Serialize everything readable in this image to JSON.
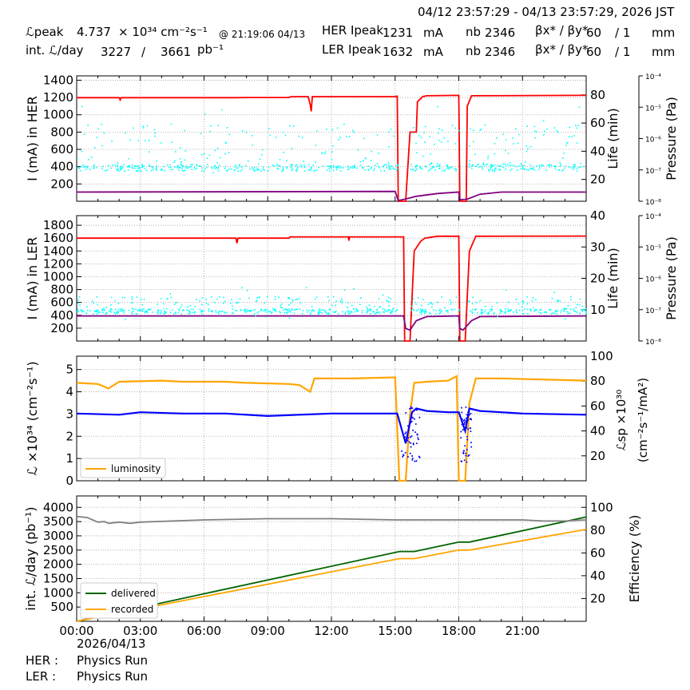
{
  "header": {
    "date_range": "04/12 23:57:29 - 04/13 23:57:29, 2026 JST",
    "lpeak_label": "ℒpeak",
    "lpeak_value": "4.737",
    "lpeak_unit": "× 10³⁴ cm⁻²s⁻¹",
    "lpeak_time": "@ 21:19:06 04/13",
    "intl_label": "int. ℒ/day",
    "intl_recorded": "3227",
    "intl_sep": "/",
    "intl_delivered": "3661",
    "intl_unit": "pb⁻¹",
    "her_label": "HER Ipeak",
    "her_value": "1231",
    "ler_label": "LER Ipeak",
    "ler_value": "1632",
    "current_unit": "mA",
    "nb_label": "nb",
    "her_nb": "2346",
    "ler_nb": "2346",
    "beta_label": "βx* / βy*",
    "her_beta_x": "60",
    "her_beta_y": "/ 1",
    "ler_beta_x": "60",
    "ler_beta_y": "/ 1",
    "beta_unit": "mm"
  },
  "footer": {
    "date": "2026/04/13",
    "her_label": "HER :",
    "her_status": "Physics Run",
    "ler_label": "LER :",
    "ler_status": "Physics Run"
  },
  "colors": {
    "red": "#ff0000",
    "cyan": "#00ffff",
    "purple": "#800080",
    "orange": "#ffa500",
    "blue": "#0000ff",
    "green": "#006400",
    "gray": "#808080",
    "grid": "#a0a0a0"
  },
  "chart_data": [
    {
      "type": "line",
      "ylabel": "I (mA) in HER",
      "y2label": "Life (min)",
      "y3label": "Pressure (Pa)",
      "ylim": [
        0,
        1450
      ],
      "yticks": [
        200,
        400,
        600,
        800,
        1000,
        1200,
        1400
      ],
      "y2lim": [
        4.5,
        93.5
      ],
      "y2ticks": [
        20,
        40,
        60,
        80
      ],
      "y3ticks": [
        "10⁻⁴",
        "10⁻⁵",
        "10⁻⁶",
        "10⁻⁷",
        "10⁻⁸"
      ],
      "xlim": [
        0,
        24
      ],
      "series": [
        {
          "key": "current",
          "color": "red",
          "points": [
            [
              0,
              1198
            ],
            [
              2.0,
              1198
            ],
            [
              2.05,
              1172
            ],
            [
              2.1,
              1198
            ],
            [
              7.5,
              1198
            ],
            [
              8.0,
              1200
            ],
            [
              10.0,
              1200
            ],
            [
              10.1,
              1210
            ],
            [
              10.9,
              1210
            ],
            [
              11.0,
              1120
            ],
            [
              11.05,
              1040
            ],
            [
              11.1,
              1210
            ],
            [
              15.0,
              1210
            ],
            [
              15.1,
              1215
            ],
            [
              15.15,
              0
            ],
            [
              15.5,
              0
            ],
            [
              15.7,
              800
            ],
            [
              16.0,
              800
            ],
            [
              16.05,
              1150
            ],
            [
              16.3,
              1210
            ],
            [
              16.5,
              1220
            ],
            [
              18.0,
              1225
            ],
            [
              18.05,
              0
            ],
            [
              18.35,
              0
            ],
            [
              18.4,
              1100
            ],
            [
              18.6,
              1220
            ],
            [
              24,
              1225
            ]
          ]
        },
        {
          "key": "life",
          "color": "purple",
          "axis": "y2",
          "points": [
            [
              0,
              11
            ],
            [
              15.0,
              11.5
            ],
            [
              15.15,
              5
            ],
            [
              15.6,
              6.5
            ],
            [
              16.0,
              8
            ],
            [
              17.0,
              10
            ],
            [
              18.0,
              11
            ],
            [
              18.05,
              5.5
            ],
            [
              18.4,
              6
            ],
            [
              19.0,
              9.5
            ],
            [
              20.0,
              11
            ],
            [
              24,
              11
            ]
          ]
        },
        {
          "key": "pressure",
          "color": "cyan",
          "scatter": true,
          "ymin": 280,
          "ymax": 900,
          "center": 395
        }
      ]
    },
    {
      "type": "line",
      "ylabel": "I (mA) in LER",
      "y2label": "Life (min)",
      "y3label": "Pressure (Pa)",
      "ylim": [
        0,
        1950
      ],
      "yticks": [
        200,
        400,
        600,
        800,
        1000,
        1200,
        1400,
        1600,
        1800
      ],
      "y2lim": [
        0,
        40
      ],
      "y2ticks": [
        10,
        20,
        30,
        40
      ],
      "y3ticks": [
        "10⁻⁴",
        "10⁻⁵",
        "10⁻⁶",
        "10⁻⁷",
        "10⁻⁸"
      ],
      "xlim": [
        0,
        24
      ],
      "series": [
        {
          "key": "current",
          "color": "red",
          "points": [
            [
              0,
              1600
            ],
            [
              7.5,
              1600
            ],
            [
              7.55,
              1520
            ],
            [
              7.6,
              1600
            ],
            [
              10.0,
              1600
            ],
            [
              10.05,
              1620
            ],
            [
              12.8,
              1620
            ],
            [
              12.82,
              1560
            ],
            [
              12.85,
              1620
            ],
            [
              15.4,
              1620
            ],
            [
              15.45,
              0
            ],
            [
              15.7,
              0
            ],
            [
              15.9,
              1400
            ],
            [
              16.2,
              1550
            ],
            [
              16.4,
              1600
            ],
            [
              17.0,
              1630
            ],
            [
              18.0,
              1630
            ],
            [
              18.05,
              0
            ],
            [
              18.3,
              0
            ],
            [
              18.5,
              1400
            ],
            [
              18.8,
              1630
            ],
            [
              24,
              1632
            ]
          ]
        },
        {
          "key": "life",
          "color": "purple",
          "axis": "y2",
          "points": [
            [
              0,
              8
            ],
            [
              15.4,
              8
            ],
            [
              15.5,
              4
            ],
            [
              15.7,
              3.5
            ],
            [
              16.0,
              6.5
            ],
            [
              16.5,
              7.8
            ],
            [
              18.0,
              8
            ],
            [
              18.05,
              4
            ],
            [
              18.2,
              3.5
            ],
            [
              18.6,
              6.5
            ],
            [
              19.0,
              7.8
            ],
            [
              24,
              8
            ]
          ]
        },
        {
          "key": "pressure",
          "color": "cyan",
          "scatter": true,
          "ymin": 330,
          "ymax": 700,
          "center": 470
        }
      ]
    },
    {
      "type": "line",
      "ylabel": "ℒ ×10³⁴ (cm⁻²s⁻¹)",
      "y2label": "ℒsp ×10³⁰",
      "y2label2": "(cm⁻²s⁻¹/mA²)",
      "ylim": [
        0,
        5.6
      ],
      "yticks": [
        0,
        1,
        2,
        3,
        4,
        5
      ],
      "y2lim": [
        0,
        100
      ],
      "y2ticks": [
        20,
        40,
        60,
        80,
        100
      ],
      "xlim": [
        0,
        24
      ],
      "legend": [
        {
          "name": "luminosity",
          "color": "orange"
        }
      ],
      "series": [
        {
          "key": "luminosity",
          "color": "orange",
          "points": [
            [
              0,
              4.4
            ],
            [
              1.0,
              4.35
            ],
            [
              1.5,
              4.15
            ],
            [
              2.0,
              4.45
            ],
            [
              4.0,
              4.5
            ],
            [
              5.0,
              4.45
            ],
            [
              7.0,
              4.45
            ],
            [
              8.0,
              4.4
            ],
            [
              10.0,
              4.35
            ],
            [
              10.5,
              4.3
            ],
            [
              11.0,
              4.0
            ],
            [
              11.2,
              4.6
            ],
            [
              13.0,
              4.6
            ],
            [
              15.0,
              4.65
            ],
            [
              15.2,
              0
            ],
            [
              15.5,
              0
            ],
            [
              15.7,
              3.0
            ],
            [
              15.9,
              4.4
            ],
            [
              16.5,
              4.45
            ],
            [
              17.5,
              4.5
            ],
            [
              17.9,
              4.7
            ],
            [
              18.0,
              0
            ],
            [
              18.3,
              0
            ],
            [
              18.5,
              3.5
            ],
            [
              18.8,
              4.6
            ],
            [
              20.0,
              4.6
            ],
            [
              24,
              4.5
            ]
          ]
        },
        {
          "key": "specific",
          "color": "blue",
          "axis": "y2",
          "points": [
            [
              0,
              54
            ],
            [
              2.0,
              53
            ],
            [
              3.0,
              55
            ],
            [
              5.0,
              54
            ],
            [
              7.0,
              54
            ],
            [
              9.0,
              52
            ],
            [
              12.0,
              54
            ],
            [
              15.0,
              54
            ],
            [
              15.1,
              54
            ],
            [
              15.5,
              30
            ],
            [
              15.8,
              55
            ],
            [
              16.0,
              58
            ],
            [
              16.5,
              56
            ],
            [
              17.5,
              55
            ],
            [
              18.0,
              55
            ],
            [
              18.3,
              40
            ],
            [
              18.5,
              58
            ],
            [
              19.0,
              56
            ],
            [
              21.0,
              54
            ],
            [
              24,
              53
            ]
          ]
        }
      ]
    },
    {
      "type": "line",
      "ylabel": "int. ℒ/day (pb⁻¹)",
      "y2label": "Efficiency (%)",
      "ylim": [
        0,
        4400
      ],
      "yticks": [
        500,
        1000,
        1500,
        2000,
        2500,
        3000,
        3500,
        4000
      ],
      "y2lim": [
        0,
        110
      ],
      "y2ticks": [
        20,
        40,
        60,
        80,
        100
      ],
      "xlim": [
        0,
        24
      ],
      "xticks": [
        "00:00",
        "03:00",
        "06:00",
        "09:00",
        "12:00",
        "15:00",
        "18:00",
        "21:00"
      ],
      "legend": [
        {
          "name": "delivered",
          "color": "green"
        },
        {
          "name": "recorded",
          "color": "orange"
        }
      ],
      "series": [
        {
          "key": "delivered",
          "color": "green",
          "points": [
            [
              0,
              0
            ],
            [
              15.2,
              2450
            ],
            [
              15.9,
              2450
            ],
            [
              18.0,
              2780
            ],
            [
              18.5,
              2780
            ],
            [
              24,
              3661
            ]
          ]
        },
        {
          "key": "recorded",
          "color": "orange",
          "points": [
            [
              0,
              0
            ],
            [
              15.2,
              2200
            ],
            [
              15.9,
              2200
            ],
            [
              18.0,
              2500
            ],
            [
              18.5,
              2500
            ],
            [
              24,
              3227
            ]
          ]
        },
        {
          "key": "efficiency",
          "color": "gray",
          "axis": "y2",
          "points": [
            [
              0,
              92
            ],
            [
              0.5,
              91
            ],
            [
              1.0,
              87
            ],
            [
              1.3,
              87.5
            ],
            [
              1.5,
              86
            ],
            [
              2.0,
              87
            ],
            [
              2.5,
              86
            ],
            [
              3.0,
              87
            ],
            [
              6.0,
              89
            ],
            [
              9.0,
              90
            ],
            [
              12.0,
              90
            ],
            [
              15.0,
              89
            ],
            [
              18.0,
              89
            ],
            [
              21.0,
              89
            ],
            [
              22.0,
              88
            ],
            [
              23.0,
              88
            ],
            [
              24,
              89
            ]
          ]
        }
      ]
    }
  ]
}
